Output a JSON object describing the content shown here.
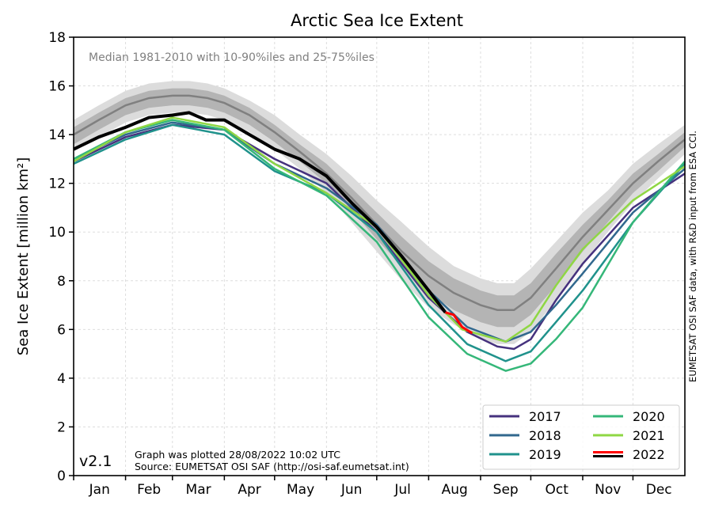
{
  "chart_data": {
    "type": "line",
    "title": "Arctic Sea Ice Extent",
    "subtitle": "Median 1981-2010 with 10-90%iles and 25-75%iles",
    "ylabel": "Sea Ice Extent [million km²]",
    "ylim": [
      0,
      18
    ],
    "yticks": [
      0,
      2,
      4,
      6,
      8,
      10,
      12,
      14,
      16,
      18
    ],
    "xlim_day_of_year": [
      0,
      365
    ],
    "months": [
      "Jan",
      "Feb",
      "Mar",
      "Apr",
      "May",
      "Jun",
      "Jul",
      "Aug",
      "Sep",
      "Oct",
      "Nov",
      "Dec"
    ],
    "grid": true,
    "legend_position": "bottom-right",
    "version": "v2.1",
    "plotted_note": "Graph was plotted 28/08/2022 10:02 UTC",
    "source_note": "Source: EUMETSAT OSI SAF (http://osi-saf.eumetsat.int)",
    "side_note": "EUMETSAT OSI SAF data, with R&D input from ESA CCI.",
    "climatology": {
      "x": [
        0,
        15,
        31,
        45,
        59,
        69,
        80,
        90,
        105,
        120,
        135,
        151,
        166,
        181,
        196,
        212,
        227,
        243,
        253,
        263,
        273,
        288,
        304,
        319,
        334,
        349,
        365
      ],
      "median": [
        14.0,
        14.6,
        15.2,
        15.5,
        15.6,
        15.6,
        15.5,
        15.3,
        14.8,
        14.1,
        13.3,
        12.4,
        11.4,
        10.3,
        9.2,
        8.2,
        7.5,
        7.0,
        6.8,
        6.8,
        7.3,
        8.5,
        9.8,
        10.9,
        12.0,
        12.9,
        13.8
      ],
      "p10": [
        13.3,
        13.9,
        14.5,
        14.8,
        14.9,
        14.9,
        14.8,
        14.6,
        14.1,
        13.4,
        12.6,
        11.6,
        10.4,
        9.2,
        8.0,
        6.9,
        6.2,
        5.6,
        5.4,
        5.4,
        5.9,
        7.2,
        8.7,
        10.0,
        11.2,
        12.2,
        13.2
      ],
      "p25": [
        13.6,
        14.2,
        14.8,
        15.1,
        15.2,
        15.2,
        15.1,
        14.9,
        14.4,
        13.7,
        12.9,
        12.0,
        10.9,
        9.7,
        8.6,
        7.5,
        6.8,
        6.3,
        6.1,
        6.1,
        6.6,
        7.8,
        9.2,
        10.4,
        11.6,
        12.5,
        13.5
      ],
      "p75": [
        14.3,
        14.9,
        15.5,
        15.8,
        15.9,
        15.9,
        15.8,
        15.6,
        15.1,
        14.4,
        13.6,
        12.8,
        11.8,
        10.8,
        9.8,
        8.8,
        8.1,
        7.6,
        7.4,
        7.4,
        7.9,
        9.1,
        10.3,
        11.3,
        12.4,
        13.2,
        14.1
      ],
      "p90": [
        14.6,
        15.2,
        15.8,
        16.1,
        16.2,
        16.2,
        16.1,
        15.9,
        15.4,
        14.8,
        14.0,
        13.2,
        12.3,
        11.3,
        10.4,
        9.4,
        8.6,
        8.1,
        7.9,
        7.9,
        8.5,
        9.6,
        10.8,
        11.7,
        12.8,
        13.6,
        14.4
      ]
    },
    "series": [
      {
        "name": "2017",
        "color": "#46327e",
        "x": [
          0,
          31,
          59,
          90,
          120,
          151,
          181,
          212,
          235,
          253,
          263,
          273,
          288,
          304,
          334,
          365
        ],
        "y": [
          12.9,
          13.9,
          14.4,
          14.2,
          13.0,
          12.0,
          10.0,
          7.3,
          5.9,
          5.3,
          5.2,
          5.6,
          7.2,
          8.7,
          11.0,
          12.4
        ]
      },
      {
        "name": "2018",
        "color": "#31688e",
        "x": [
          0,
          31,
          59,
          90,
          120,
          151,
          181,
          212,
          235,
          258,
          273,
          288,
          304,
          334,
          365
        ],
        "y": [
          13.0,
          14.0,
          14.5,
          14.2,
          12.8,
          11.8,
          10.3,
          7.6,
          6.1,
          5.5,
          5.9,
          7.0,
          8.3,
          10.8,
          12.6
        ]
      },
      {
        "name": "2019",
        "color": "#20928c",
        "x": [
          0,
          31,
          59,
          90,
          120,
          151,
          181,
          212,
          235,
          258,
          273,
          288,
          304,
          334,
          365
        ],
        "y": [
          12.8,
          13.8,
          14.4,
          14.0,
          12.5,
          11.6,
          10.0,
          7.0,
          5.4,
          4.7,
          5.1,
          6.3,
          7.6,
          10.4,
          12.8
        ]
      },
      {
        "name": "2020",
        "color": "#35b779",
        "x": [
          0,
          31,
          59,
          90,
          120,
          151,
          181,
          212,
          235,
          258,
          273,
          288,
          304,
          334,
          365
        ],
        "y": [
          13.0,
          14.1,
          14.6,
          14.2,
          12.6,
          11.5,
          9.6,
          6.5,
          5.0,
          4.3,
          4.6,
          5.6,
          6.9,
          10.4,
          12.9
        ]
      },
      {
        "name": "2021",
        "color": "#8fd744",
        "x": [
          0,
          31,
          59,
          90,
          120,
          151,
          181,
          212,
          232,
          258,
          273,
          288,
          304,
          334,
          365
        ],
        "y": [
          12.9,
          14.1,
          14.7,
          14.3,
          12.8,
          11.6,
          10.2,
          7.4,
          6.0,
          5.5,
          6.2,
          7.8,
          9.3,
          11.3,
          12.7
        ]
      },
      {
        "name": "2022",
        "color": "#000000",
        "recent_color": "#ff0000",
        "x": [
          0,
          15,
          31,
          45,
          59,
          69,
          79,
          90,
          105,
          120,
          135,
          151,
          166,
          181,
          196,
          212,
          222
        ],
        "y": [
          13.4,
          13.9,
          14.3,
          14.7,
          14.8,
          14.9,
          14.6,
          14.6,
          14.0,
          13.4,
          13.0,
          12.3,
          11.2,
          10.2,
          9.0,
          7.6,
          6.7
        ],
        "recent_x": [
          222,
          227,
          232,
          238
        ],
        "recent_y": [
          6.7,
          6.6,
          6.1,
          5.85
        ]
      }
    ]
  }
}
